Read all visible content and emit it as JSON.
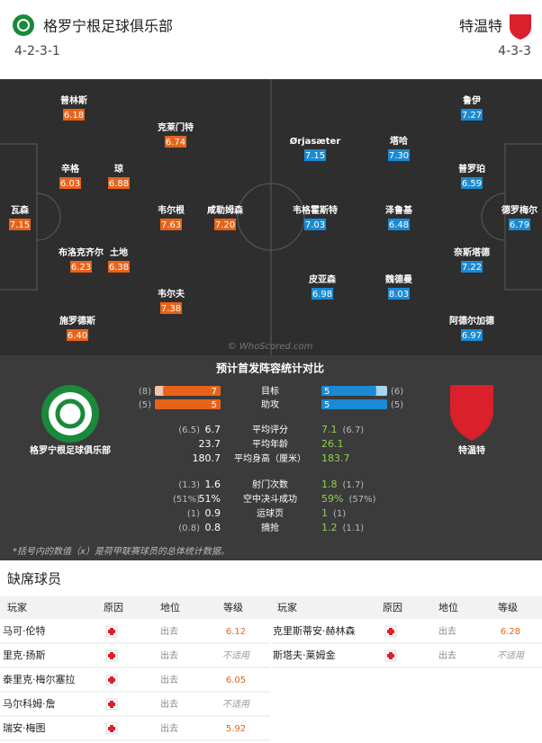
{
  "header": {
    "home": {
      "name": "格罗宁根足球俱乐部",
      "formation": "4-2-3-1"
    },
    "away": {
      "name": "特温特",
      "formation": "4-3-3"
    }
  },
  "pitch": {
    "home_players": [
      {
        "name": "普林斯",
        "rating": "6.18"
      },
      {
        "name": "克莱门特",
        "rating": "6.74"
      },
      {
        "name": "辛格",
        "rating": "6.03"
      },
      {
        "name": "琼",
        "rating": "6.88"
      },
      {
        "name": "瓦森",
        "rating": "7.15"
      },
      {
        "name": "韦尔根",
        "rating": "7.63"
      },
      {
        "name": "咸勒姆森",
        "rating": "7.20"
      },
      {
        "name": "布洛克齐尔",
        "rating": "6.23"
      },
      {
        "name": "土地",
        "rating": "6.38"
      },
      {
        "name": "韦尔夫",
        "rating": "7.38"
      },
      {
        "name": "施罗德斯",
        "rating": "6.40"
      }
    ],
    "away_players": [
      {
        "name": "鲁伊",
        "rating": "7.27"
      },
      {
        "name": "Ørjasæter",
        "rating": "7.15"
      },
      {
        "name": "塔哈",
        "rating": "7.30"
      },
      {
        "name": "普罗珀",
        "rating": "6.59"
      },
      {
        "name": "韦格霍斯特",
        "rating": "7.03"
      },
      {
        "name": "泽鲁基",
        "rating": "6.48"
      },
      {
        "name": "德罗梅尔",
        "rating": "6.79"
      },
      {
        "name": "奈斯塔德",
        "rating": "7.22"
      },
      {
        "name": "皮亚森",
        "rating": "6.98"
      },
      {
        "name": "魏德曼",
        "rating": "8.03"
      },
      {
        "name": "阿德尔加德",
        "rating": "6.97"
      }
    ],
    "watermark": "© WhoScored.com"
  },
  "comparison": {
    "title": "预计首发阵容统计对比",
    "home_team": "格罗宁根足球俱乐部",
    "away_team": "特温特",
    "bars": [
      {
        "label": "目标",
        "home": 7,
        "home_league": {
          "value": 8,
          "label": "(8)"
        },
        "away": 5,
        "away_league": {
          "value": 6,
          "label": "(6)"
        }
      },
      {
        "label": "助攻",
        "home": 5,
        "home_league": {
          "value": 5,
          "label": "(5)"
        },
        "away": 5,
        "away_league": {
          "value": 5,
          "label": "(5)"
        }
      }
    ],
    "rows": [
      {
        "label": "平均评分",
        "home": "6.7",
        "home_league": "(6.5)",
        "away": "7.1",
        "away_league": "(6.7)"
      },
      {
        "label": "平均年龄",
        "home": "23.7",
        "away": "26.1"
      },
      {
        "label": "平均身高（厘米）",
        "home": "180.7",
        "away": "183.7"
      },
      {
        "label": "射门次数",
        "home": "1.6",
        "home_league": "(1.3)",
        "away": "1.8",
        "away_league": "(1.7)"
      },
      {
        "label": "空中决斗成功",
        "home": "51%",
        "home_league": "(51%)",
        "away": "59%",
        "away_league": "(57%)"
      },
      {
        "label": "运球页",
        "home": "0.9",
        "home_league": "(1)",
        "away": "1",
        "away_league": "(1)"
      },
      {
        "label": "摘抢",
        "home": "0.8",
        "home_league": "(0.8)",
        "away": "1.2",
        "away_league": "(1.1)"
      }
    ],
    "footnote": "*括号内的数值（x）是荷甲联赛球员的总体统计数据。"
  },
  "absent": {
    "title": "缺席球员",
    "columns": [
      "玩家",
      "原因",
      "地位",
      "等级"
    ],
    "home": [
      {
        "player": "马可·伦特",
        "status": "出去",
        "rating": "6.12"
      },
      {
        "player": "里克·扬斯",
        "status": "出去",
        "rating": "不适用"
      },
      {
        "player": "泰里克·梅尔塞拉",
        "status": "出去",
        "rating": "6.05"
      },
      {
        "player": "马尔科姆·詹",
        "status": "出去",
        "rating": "不适用"
      },
      {
        "player": "瑞安·梅图",
        "status": "出去",
        "rating": "5.92"
      }
    ],
    "away": [
      {
        "player": "克里斯蒂安·赫林森",
        "status": "出去",
        "rating": "6.28"
      },
      {
        "player": "斯塔夫·莱姆金",
        "status": "出去",
        "rating": "不适用"
      }
    ]
  }
}
